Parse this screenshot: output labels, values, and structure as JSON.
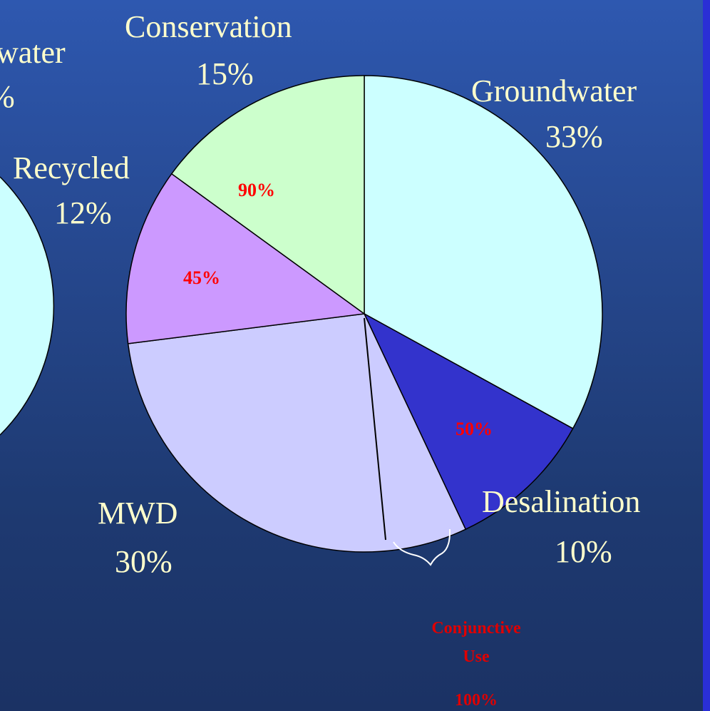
{
  "chart_data": {
    "type": "pie",
    "slices": [
      {
        "label": "Groundwater",
        "percent_label": "33%",
        "value": 33,
        "color": "#ccffff",
        "inner_label": ""
      },
      {
        "label": "Desalination",
        "percent_label": "10%",
        "value": 10,
        "color": "#3333cc",
        "inner_label": "50%"
      },
      {
        "label": "MWD",
        "percent_label": "30%",
        "value": 30,
        "color": "#ccccff",
        "inner_label": ""
      },
      {
        "label": "Recycled",
        "percent_label": "12%",
        "value": 12,
        "color": "#cc99ff",
        "inner_label": "45%"
      },
      {
        "label": "Conservation",
        "percent_label": "15%",
        "value": 15,
        "color": "#ccffcc",
        "inner_label": "90%"
      }
    ],
    "annotation": {
      "line1": "Conjunctive",
      "line2": "Use",
      "value": "100%"
    },
    "left_partial": {
      "label": "water",
      "percent": "%"
    }
  }
}
